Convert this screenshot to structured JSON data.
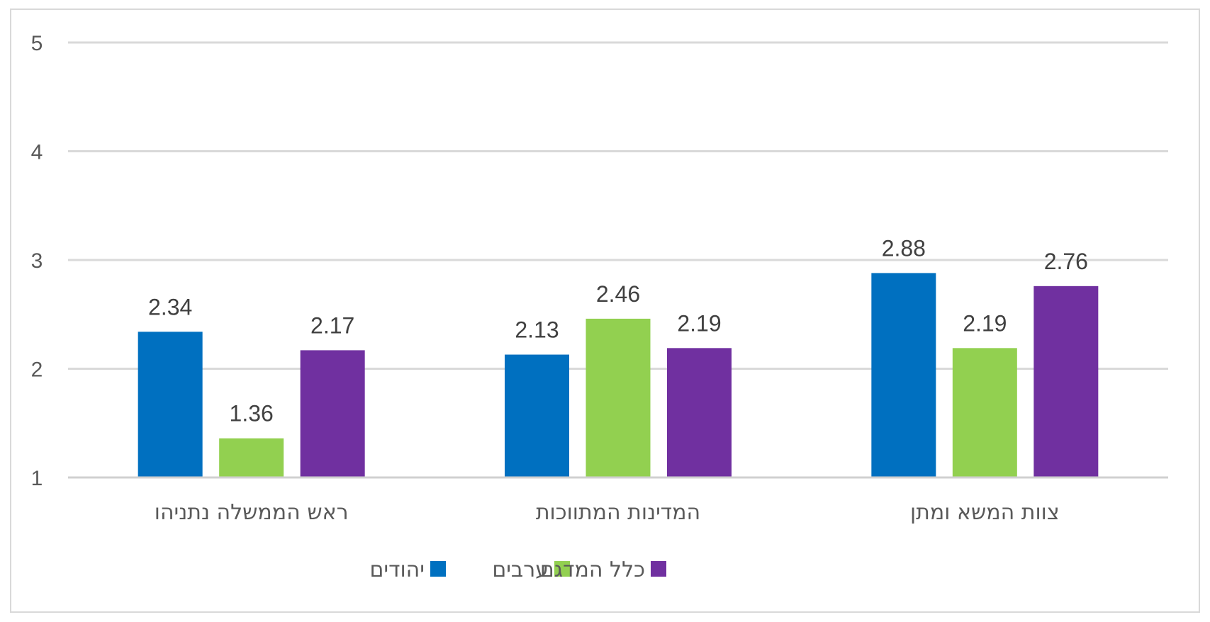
{
  "chart_data": {
    "type": "bar",
    "title": "",
    "xlabel": "",
    "ylabel": "",
    "ylim": [
      1,
      5
    ],
    "yticks": [
      1,
      2,
      3,
      4,
      5
    ],
    "grid": true,
    "legend_position": "bottom",
    "categories": [
      "ראש הממשלה נתניהו",
      "המדינות המתווכות",
      "צוות המשא ומתן"
    ],
    "series": [
      {
        "name": "יהודים",
        "color": "#0070c0",
        "values": [
          2.34,
          2.13,
          2.88
        ]
      },
      {
        "name": "ערבים",
        "color": "#92d050",
        "values": [
          1.36,
          2.46,
          2.19
        ]
      },
      {
        "name": "כלל המדגם",
        "color": "#7030a0",
        "values": [
          2.17,
          2.19,
          2.76
        ]
      }
    ]
  }
}
